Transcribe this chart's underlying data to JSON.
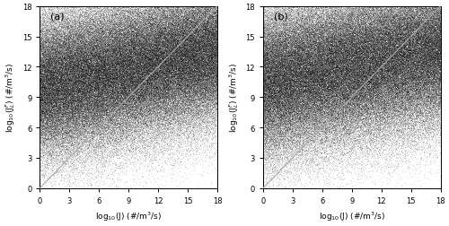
{
  "xlim": [
    0,
    18
  ],
  "ylim": [
    0,
    18
  ],
  "xticks": [
    0,
    3,
    6,
    9,
    12,
    15,
    18
  ],
  "yticks": [
    0,
    3,
    6,
    9,
    12,
    15,
    18
  ],
  "xlabel": "log$_{10}$(J) (#/m$^3$/s)",
  "ylabel_a": "log$_{10}$(J$^F_L$) (#/m$^3$/s)",
  "ylabel_b": "log$_{10}$(J$^F_L$) (#/m$^3$/s)",
  "label_a": "(a)",
  "label_b": "(b)",
  "n_points": 200000,
  "seed_a": 42,
  "seed_b": 137,
  "diag_color": "#aaaaaa",
  "point_color": "#000000",
  "point_alpha": 0.08,
  "point_size": 0.5,
  "background_color": "#ffffff",
  "figsize": [
    5.0,
    2.53
  ],
  "dpi": 100,
  "label_fontsize": 8,
  "tick_fontsize": 6,
  "axis_label_fontsize": 6.5
}
